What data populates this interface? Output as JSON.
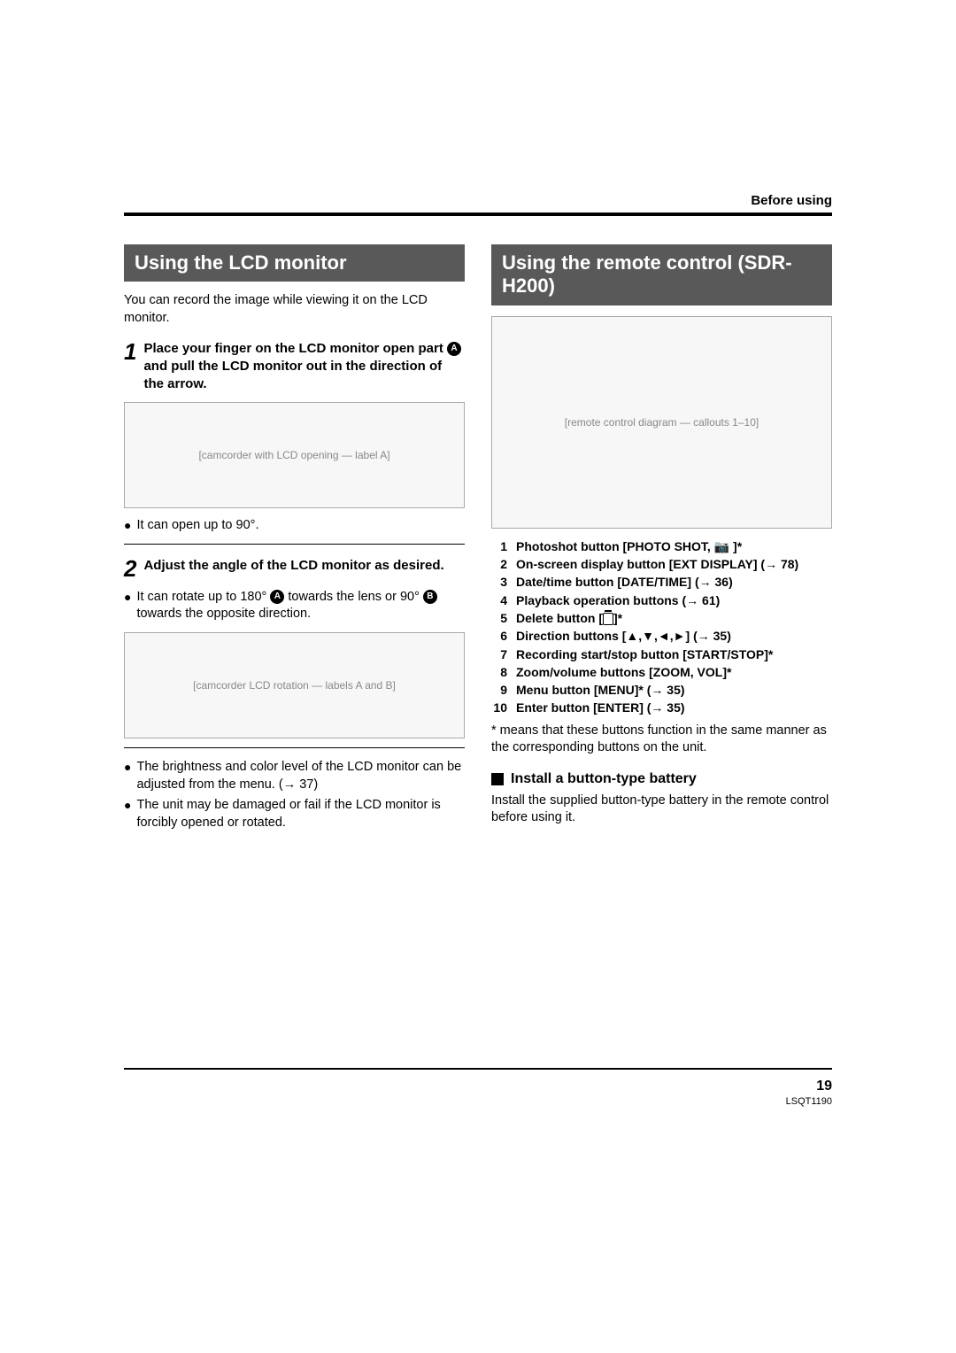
{
  "page": {
    "top_label": "Before using",
    "page_number": "19",
    "doc_code": "LSQT1190"
  },
  "left": {
    "section_title": "Using the LCD monitor",
    "intro": "You can record the image while viewing it on the LCD monitor.",
    "step1_num": "1",
    "step1_text_a": "Place your finger on the LCD monitor open part ",
    "step1_label": "A",
    "step1_text_b": " and pull the LCD monitor out in the direction of the arrow.",
    "img1_alt": "[camcorder with LCD opening — label A]",
    "bullet1": "It can open up to 90°.",
    "step2_num": "2",
    "step2_text": "Adjust the angle of the LCD monitor as desired.",
    "bullet2_a": "It can rotate up to 180° ",
    "bullet2_labelA": "A",
    "bullet2_b": " towards the lens or 90° ",
    "bullet2_labelB": "B",
    "bullet2_c": " towards the opposite direction.",
    "img2_alt": "[camcorder LCD rotation — labels A and B]",
    "bullet3": "The brightness and color level of the LCD monitor can be adjusted from the menu. (→ 37)",
    "bullet4": "The unit may be damaged or fail if the LCD monitor is forcibly opened or rotated."
  },
  "right": {
    "section_title": "Using the remote control (SDR-H200)",
    "img_alt": "[remote control diagram — callouts 1–10]",
    "items": [
      {
        "n": "1",
        "t": "Photoshot button [PHOTO SHOT, 📷 ]*"
      },
      {
        "n": "2",
        "t": "On-screen display button [EXT DISPLAY] (→ 78)"
      },
      {
        "n": "3",
        "t": "Date/time button [DATE/TIME] (→ 36)"
      },
      {
        "n": "4",
        "t": "Playback operation buttons (→ 61)"
      },
      {
        "n": "5",
        "t": "Delete button [",
        "trash": true,
        "t2": "]*"
      },
      {
        "n": "6",
        "t": "Direction buttons [▲,▼,◄,►] (→ 35)"
      },
      {
        "n": "7",
        "t": "Recording start/stop button [START/STOP]*"
      },
      {
        "n": "8",
        "t": "Zoom/volume buttons [ZOOM, VOL]*"
      },
      {
        "n": "9",
        "t": "Menu button [MENU]* (→ 35)"
      },
      {
        "n": "10",
        "t": "Enter button [ENTER] (→ 35)"
      }
    ],
    "note": "* means that these buttons function in the same manner as the corresponding buttons on the unit.",
    "sub_heading": "Install a button-type battery",
    "sub_text": "Install the supplied button-type battery in the remote control before using it."
  }
}
